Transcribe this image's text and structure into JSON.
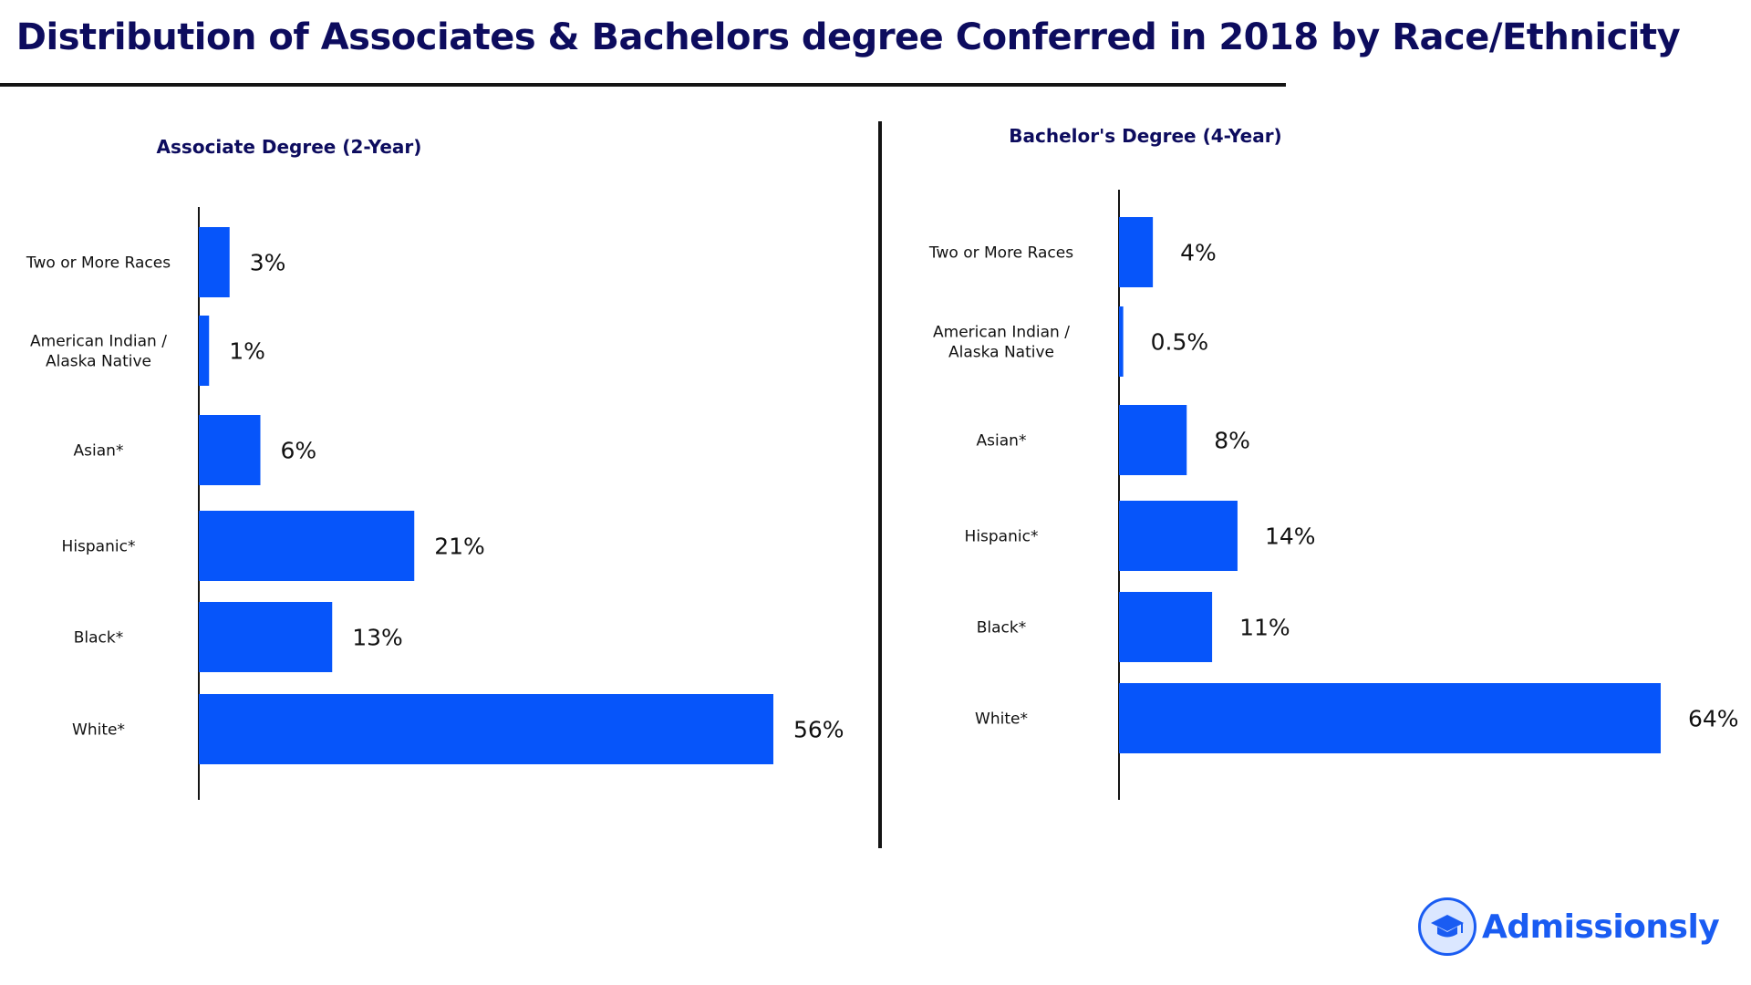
{
  "title": "Distribution of Associates & Bachelors degree Conferred in 2018 by Race/Ethnicity",
  "colors": {
    "bar": "#0655fa",
    "title": "#0d0c5e",
    "axis": "#141414",
    "brand": "#1a5cf2"
  },
  "brand": {
    "name": "Admissionsly",
    "icon": "graduation-cap-icon"
  },
  "chart_data": [
    {
      "type": "bar",
      "orientation": "horizontal",
      "title": "Associate Degree (2-Year)",
      "categories": [
        "Two or More Races",
        "American Indian / Alaska Native",
        "Asian*",
        "Hispanic*",
        "Black*",
        "White*"
      ],
      "category_lines": [
        [
          "Two or More Races"
        ],
        [
          "American Indian /",
          "Alaska Native"
        ],
        [
          "Asian*"
        ],
        [
          "Hispanic*"
        ],
        [
          "Black*"
        ],
        [
          "White*"
        ]
      ],
      "values": [
        3,
        1,
        6,
        21,
        13,
        56
      ],
      "value_labels": [
        "3%",
        "1%",
        "6%",
        "21%",
        "13%",
        "56%"
      ],
      "unit": "%",
      "xlim": [
        0,
        56
      ]
    },
    {
      "type": "bar",
      "orientation": "horizontal",
      "title": "Bachelor's Degree (4-Year)",
      "categories": [
        "Two or More Races",
        "American Indian / Alaska Native",
        "Asian*",
        "Hispanic*",
        "Black*",
        "White*"
      ],
      "category_lines": [
        [
          "Two or More Races"
        ],
        [
          "American Indian /",
          "Alaska Native"
        ],
        [
          "Asian*"
        ],
        [
          "Hispanic*"
        ],
        [
          "Black*"
        ],
        [
          "White*"
        ]
      ],
      "values": [
        4,
        0.5,
        8,
        14,
        11,
        64
      ],
      "value_labels": [
        "4%",
        "0.5%",
        "8%",
        "14%",
        "11%",
        "64%"
      ],
      "unit": "%",
      "xlim": [
        0,
        64
      ]
    }
  ]
}
